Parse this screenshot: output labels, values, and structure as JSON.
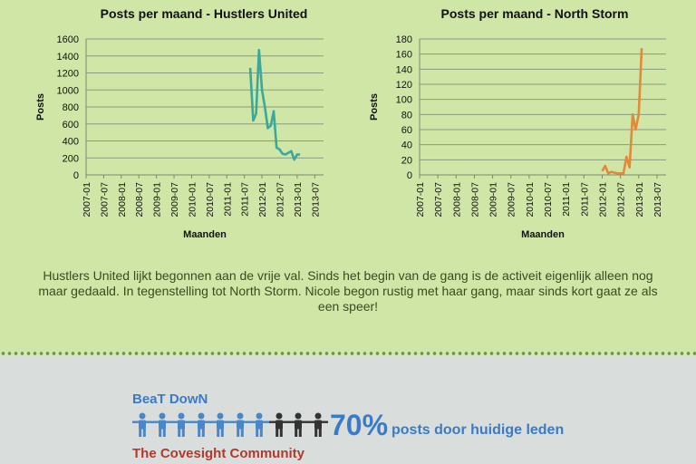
{
  "chart_data": [
    {
      "type": "line",
      "title": "Posts per maand - Hustlers United",
      "xlabel": "Maanden",
      "ylabel": "Posts",
      "ylim": [
        0,
        1600
      ],
      "yticks": [
        0,
        200,
        400,
        600,
        800,
        1000,
        1200,
        1400,
        1600
      ],
      "xlim": [
        2007.0,
        2013.75
      ],
      "xticks": [
        "2007-01",
        "2007-07",
        "2008-01",
        "2008-07",
        "2009-01",
        "2009-07",
        "2010-01",
        "2010-07",
        "2011-01",
        "2011-07",
        "2012-01",
        "2012-07",
        "2013-01",
        "2013-07"
      ],
      "grid": true,
      "color": "#3aa89a",
      "series": [
        {
          "x": [
            "2011-09",
            "2011-10",
            "2011-11",
            "2011-12",
            "2012-01",
            "2012-02",
            "2012-03",
            "2012-04",
            "2012-05",
            "2012-06",
            "2012-07",
            "2012-08",
            "2012-09",
            "2012-10",
            "2012-11",
            "2012-12",
            "2013-01",
            "2013-02"
          ],
          "y": [
            1260,
            640,
            720,
            1470,
            1000,
            800,
            550,
            580,
            750,
            320,
            300,
            250,
            240,
            260,
            280,
            180,
            240,
            240
          ]
        }
      ]
    },
    {
      "type": "line",
      "title": "Posts per maand - North Storm",
      "xlabel": "Maanden",
      "ylabel": "Posts",
      "ylim": [
        0,
        180
      ],
      "yticks": [
        0,
        20,
        40,
        60,
        80,
        100,
        120,
        140,
        160,
        180
      ],
      "xlim": [
        2007.0,
        2013.75
      ],
      "xticks": [
        "2007-01",
        "2007-07",
        "2008-01",
        "2008-07",
        "2009-01",
        "2009-07",
        "2010-01",
        "2010-07",
        "2011-01",
        "2011-07",
        "2012-01",
        "2012-07",
        "2013-01",
        "2013-07"
      ],
      "grid": true,
      "color": "#e08a3a",
      "series": [
        {
          "x": [
            "2012-01",
            "2012-02",
            "2012-03",
            "2012-04",
            "2012-05",
            "2012-06",
            "2012-07",
            "2012-08",
            "2012-09",
            "2012-10",
            "2012-11",
            "2012-12",
            "2013-01",
            "2013-02"
          ],
          "y": [
            5,
            12,
            2,
            4,
            3,
            2,
            2,
            2,
            24,
            10,
            80,
            60,
            80,
            168
          ]
        }
      ]
    }
  ],
  "caption": "Hustlers United lijkt begonnen aan de vrije val. Sinds het begin van de gang is de activeit eigenlijk alleen nog maar gedaald. In tegenstelling tot North Storm. Nicole begon rustig met haar gang, maar sinds kort gaat ze als een speer!",
  "infographic": {
    "brand_top": "BeaT DowN",
    "brand_bottom": "The Covesight Community",
    "percentage": "70%",
    "percentage_label": "posts door huidige leden",
    "people_total": 10,
    "people_highlighted": 7,
    "highlight_color": "#4a86c8",
    "other_color": "#333333"
  }
}
